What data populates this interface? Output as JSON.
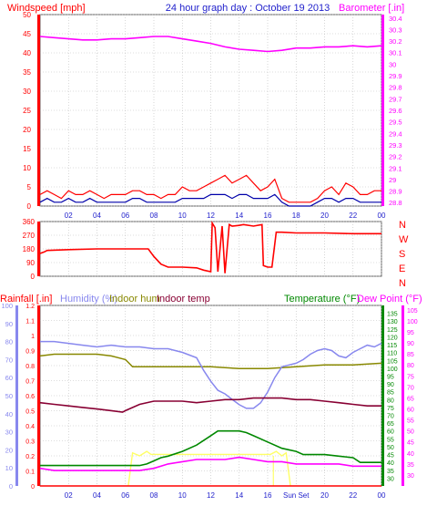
{
  "header": {
    "left_label": "Windspeed [mph]",
    "center_title": "24 hour graph day : October 19 2013",
    "right_label": "Barometer [.in]"
  },
  "colors": {
    "wind": "#ff0000",
    "wind_avg": "#0000aa",
    "barometer": "#ff00ff",
    "direction": "#ff0000",
    "rain": "#ff0000",
    "humidity": "#8888ee",
    "indoor_hum": "#888800",
    "indoor_temp": "#880033",
    "temperature": "#008800",
    "dewpoint": "#ff00ff",
    "sun": "#ffff66",
    "grid": "#bbbbbb"
  },
  "x_axis": {
    "tick_labels": [
      "02",
      "04",
      "06",
      "08",
      "10",
      "12",
      "14",
      "16",
      "18",
      "20",
      "22",
      "00"
    ],
    "bottom_tick_labels": [
      "02",
      "04",
      "06",
      "08",
      "10",
      "12",
      "14",
      "16",
      "Sun Set",
      "20",
      "22",
      "00"
    ]
  },
  "direction_axis": {
    "tick_labels": [
      "360",
      "270",
      "180",
      "90",
      "0"
    ],
    "compass_labels": [
      "N",
      "W",
      "S",
      "E",
      "N"
    ]
  },
  "lower_legend": {
    "rainfall": "Rainfall [.in]",
    "humidity": "Humidity (%)",
    "indoor_hum": "Indoor hum",
    "indoor_temp": "Indoor temp",
    "temperature": "Temperature (°F)",
    "dewpoint": "Dew Point (°F)"
  },
  "chart_data": [
    {
      "type": "line",
      "name_axis_left": "Windspeed [mph]",
      "name_axis_right": "Barometer [.in]",
      "x_range_hours": [
        0,
        24
      ],
      "x_ticks": [
        2,
        4,
        6,
        8,
        10,
        12,
        14,
        16,
        18,
        20,
        22,
        24
      ],
      "y_left": {
        "range": [
          0,
          50
        ],
        "ticks": [
          0,
          5,
          10,
          15,
          20,
          25,
          30,
          35,
          40,
          45,
          50
        ]
      },
      "y_right": {
        "range": [
          28.77,
          30.43
        ],
        "ticks": [
          28.8,
          28.9,
          29.0,
          29.1,
          29.2,
          29.3,
          29.4,
          29.5,
          29.6,
          29.7,
          29.8,
          29.9,
          30.0,
          30.1,
          30.2,
          30.3,
          30.4
        ],
        "tick_labels": [
          "28.8",
          "28.9",
          "29",
          "29.1",
          "29.2",
          "29.3",
          "29.4",
          "29.5",
          "29.6",
          "29.7",
          "29.8",
          "29.9",
          "30",
          "30.1",
          "30.2",
          "30.3",
          "30.4"
        ]
      },
      "barometer_series": {
        "axis": "right",
        "x": [
          0,
          1,
          2,
          3,
          4,
          5,
          6,
          7,
          8,
          9,
          10,
          11,
          12,
          13,
          14,
          15,
          16,
          17,
          18,
          19,
          20,
          21,
          22,
          23,
          24
        ],
        "y": [
          30.24,
          30.23,
          30.22,
          30.21,
          30.21,
          30.22,
          30.22,
          30.23,
          30.24,
          30.24,
          30.22,
          30.2,
          30.18,
          30.15,
          30.13,
          30.12,
          30.11,
          30.12,
          30.14,
          30.14,
          30.15,
          30.15,
          30.16,
          30.15,
          30.16
        ]
      },
      "wind_gust_series": {
        "axis": "left",
        "x": [
          0,
          0.5,
          1,
          1.5,
          2,
          2.5,
          3,
          3.5,
          4,
          4.5,
          5,
          5.5,
          6,
          6.5,
          7,
          7.5,
          8,
          8.5,
          9,
          9.5,
          10,
          10.5,
          11,
          11.5,
          12,
          12.5,
          13,
          13.5,
          14,
          14.5,
          15,
          15.5,
          16,
          16.5,
          17,
          17.5,
          18,
          18.5,
          19,
          19.5,
          20,
          20.5,
          21,
          21.5,
          22,
          22.5,
          23,
          23.5,
          24
        ],
        "y": [
          3,
          4,
          3,
          2,
          4,
          3,
          3,
          4,
          3,
          2,
          3,
          3,
          3,
          4,
          4,
          3,
          3,
          2,
          3,
          3,
          5,
          4,
          4,
          5,
          6,
          7,
          8,
          6,
          7,
          8,
          6,
          4,
          5,
          7,
          2,
          1,
          1,
          1,
          1,
          2,
          4,
          5,
          3,
          6,
          5,
          3,
          3,
          4,
          4
        ]
      },
      "wind_avg_series": {
        "axis": "left",
        "x": [
          0,
          0.5,
          1,
          1.5,
          2,
          2.5,
          3,
          3.5,
          4,
          4.5,
          5,
          5.5,
          6,
          6.5,
          7,
          7.5,
          8,
          8.5,
          9,
          9.5,
          10,
          10.5,
          11,
          11.5,
          12,
          12.5,
          13,
          13.5,
          14,
          14.5,
          15,
          15.5,
          16,
          16.5,
          17,
          17.5,
          18,
          18.5,
          19,
          19.5,
          20,
          20.5,
          21,
          21.5,
          22,
          22.5,
          23,
          23.5,
          24
        ],
        "y": [
          1,
          2,
          1,
          1,
          2,
          1,
          1,
          2,
          1,
          1,
          1,
          1,
          1,
          2,
          2,
          1,
          1,
          1,
          1,
          1,
          2,
          2,
          2,
          2,
          3,
          3,
          3,
          2,
          3,
          3,
          2,
          2,
          2,
          3,
          1,
          0,
          0,
          0,
          0,
          1,
          2,
          2,
          1,
          2,
          2,
          1,
          1,
          1,
          1
        ]
      }
    },
    {
      "type": "line",
      "name_axis_left": "Wind direction",
      "x_range_hours": [
        0,
        24
      ],
      "x_ticks": [
        2,
        4,
        6,
        8,
        10,
        12,
        14,
        16,
        18,
        20,
        22,
        24
      ],
      "y_left": {
        "range": [
          0,
          360
        ],
        "ticks": [
          0,
          90,
          180,
          270,
          360
        ]
      },
      "direction_series": {
        "x": [
          0,
          0.3,
          0.5,
          2,
          4,
          6,
          7.6,
          8,
          8.5,
          9,
          10,
          11,
          11.5,
          12,
          12.1,
          12.3,
          12.5,
          12.8,
          13,
          13.3,
          13.5,
          14,
          14.3,
          15,
          15.6,
          15.7,
          16,
          16.3,
          16.6,
          17,
          18,
          20,
          22,
          24
        ],
        "y": [
          150,
          160,
          170,
          175,
          180,
          180,
          180,
          130,
          80,
          60,
          60,
          55,
          40,
          30,
          350,
          320,
          30,
          330,
          20,
          340,
          330,
          335,
          340,
          330,
          340,
          70,
          60,
          60,
          290,
          290,
          285,
          285,
          280,
          280
        ]
      }
    },
    {
      "type": "line",
      "name_axis_left": "Rainfall [.in]",
      "name_axis_right": "Temperature (°F)",
      "x_range_hours": [
        0,
        24
      ],
      "x_ticks": [
        2,
        4,
        6,
        8,
        10,
        12,
        14,
        16,
        18,
        20,
        22,
        24
      ],
      "y_rain": {
        "range": [
          0,
          1.2
        ],
        "ticks": [
          0,
          0.1,
          0.2,
          0.3,
          0.4,
          0.5,
          0.6,
          0.7,
          0.8,
          0.9,
          1.0,
          1.1,
          1.2
        ],
        "tick_labels": [
          "0",
          "0.1",
          "0.2",
          "0.3",
          "0.4",
          "0.5",
          "0.6",
          "0.7",
          "0.8",
          "0.9",
          "1",
          "1.1",
          "1.2"
        ]
      },
      "y_humidity": {
        "range": [
          0,
          100
        ],
        "ticks": [
          0,
          10,
          20,
          30,
          40,
          50,
          60,
          70,
          80,
          90,
          100
        ]
      },
      "y_temp_green": {
        "range": [
          25,
          140
        ],
        "ticks": [
          30,
          35,
          40,
          45,
          50,
          55,
          60,
          65,
          70,
          75,
          80,
          85,
          90,
          95,
          100,
          105,
          110,
          115,
          120,
          125,
          130,
          135
        ]
      },
      "y_temp_magenta": {
        "range": [
          25,
          107
        ],
        "ticks": [
          30,
          35,
          40,
          45,
          50,
          55,
          60,
          65,
          70,
          75,
          80,
          85,
          90,
          95,
          100,
          105
        ]
      },
      "rain_series": {
        "x": [
          0,
          24
        ],
        "y": [
          0,
          0
        ]
      },
      "humidity_series": {
        "x": [
          0,
          1,
          2,
          3,
          4,
          5,
          6,
          7,
          8,
          9,
          10,
          11,
          11.5,
          12,
          12.5,
          13,
          13.5,
          14,
          14.5,
          15,
          15.5,
          16,
          16.5,
          17,
          17.5,
          18,
          18.5,
          19,
          19.5,
          20,
          20.5,
          21,
          21.5,
          22,
          22.5,
          23,
          23.5,
          24
        ],
        "y": [
          80,
          80,
          79,
          78,
          77,
          78,
          77,
          77,
          76,
          76,
          74,
          71,
          64,
          58,
          53,
          51,
          48,
          45,
          43,
          43,
          46,
          52,
          60,
          66,
          67,
          68,
          70,
          73,
          75,
          76,
          75,
          72,
          71,
          74,
          76,
          78,
          77,
          79
        ]
      },
      "indoor_hum_series": {
        "x": [
          0,
          1,
          2,
          3,
          4,
          5,
          6,
          6.5,
          7,
          8,
          10,
          12,
          14,
          16,
          18,
          20,
          22,
          24
        ],
        "y": [
          72,
          73,
          73,
          73,
          73,
          72,
          70,
          66,
          66,
          66,
          66,
          66,
          65,
          65,
          66,
          67,
          67,
          68
        ]
      },
      "indoor_temp_series": {
        "x": [
          0,
          1,
          2,
          3,
          4,
          5,
          5.8,
          6,
          7,
          8,
          9,
          10,
          11,
          12,
          13,
          14,
          15,
          16,
          17,
          18,
          19,
          20,
          21,
          22,
          23,
          24
        ],
        "y": [
          78,
          77,
          76,
          75,
          74,
          73,
          72,
          73,
          77,
          79,
          79,
          79,
          78,
          79,
          80,
          80,
          81,
          81,
          81,
          80,
          80,
          79,
          78,
          77,
          76,
          76
        ]
      },
      "temperature_series": {
        "x": [
          0,
          1,
          2,
          3,
          4,
          5,
          6,
          7,
          7.5,
          8,
          8.5,
          9,
          10,
          11,
          11.5,
          12,
          12.5,
          13,
          13.5,
          14,
          14.5,
          15,
          16,
          17,
          18,
          18.5,
          19,
          20,
          21,
          22,
          22.5,
          23,
          24
        ],
        "y": [
          38,
          38,
          38,
          38,
          38,
          38,
          38,
          38,
          39,
          41,
          43,
          44,
          47,
          51,
          54,
          57,
          60,
          60,
          60,
          60,
          59,
          57,
          53,
          49,
          47,
          45,
          45,
          45,
          44,
          43,
          40,
          40,
          40
        ]
      },
      "dewpoint_series": {
        "x": [
          0,
          1,
          2,
          3,
          4,
          5,
          6,
          7,
          8,
          9,
          10,
          11,
          12,
          13,
          14,
          15,
          16,
          17,
          18,
          19,
          20,
          21,
          22,
          23,
          24
        ],
        "y": [
          33,
          32,
          32,
          32,
          32,
          32,
          32,
          32,
          33,
          35,
          36,
          37,
          37,
          37,
          38,
          37,
          36,
          36,
          35,
          35,
          35,
          35,
          34,
          34,
          34
        ]
      },
      "sun_series": {
        "x": [
          6.2,
          6.5,
          7.0,
          7.5,
          7.8,
          16.2,
          16.6,
          17.0,
          17.3,
          17.6
        ],
        "y": [
          0,
          0.22,
          0.2,
          0.23,
          0.21,
          0.21,
          0.23,
          0.2,
          0.22,
          0
        ]
      }
    }
  ]
}
